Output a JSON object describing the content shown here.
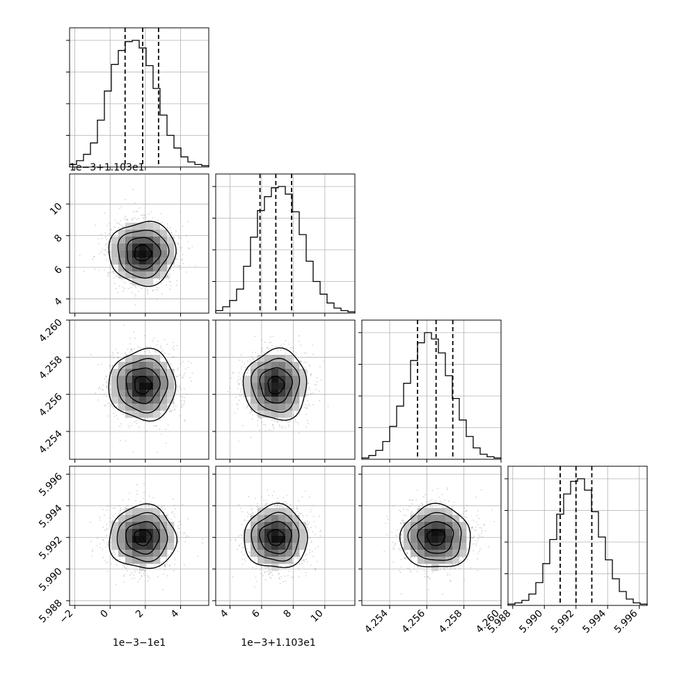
{
  "colors": {
    "frame": "#000000",
    "grid": "#b0b0b0",
    "scatter": "#808080",
    "quantile_line": "#000000"
  },
  "chart_data": {
    "type": "corner",
    "grid": true,
    "quantile_lines": "dashed",
    "parameters": [
      {
        "range": [
          -2.3,
          5.6
        ],
        "ticks": [
          -2,
          0,
          2,
          4
        ],
        "tick_labels": [
          "−2",
          "0",
          "2",
          "4"
        ],
        "offset_label": "1e−3−1e1",
        "quantiles": [
          0.85,
          1.85,
          2.75
        ],
        "hist": {
          "edges": [
            -2.3,
            -1.905,
            -1.51,
            -1.115,
            -0.72,
            -0.325,
            0.07,
            0.465,
            0.86,
            1.255,
            1.65,
            2.045,
            2.44,
            2.835,
            3.23,
            3.625,
            4.02,
            4.415,
            4.81,
            5.205,
            5.6
          ],
          "counts": [
            2,
            5,
            10,
            19,
            37,
            60,
            81,
            92,
            99,
            100,
            94,
            80,
            62,
            41,
            25,
            15,
            8,
            4,
            2,
            1
          ]
        }
      },
      {
        "range": [
          3.1,
          11.9
        ],
        "ticks": [
          4,
          6,
          8,
          10
        ],
        "tick_labels": [
          "4",
          "6",
          "8",
          "10"
        ],
        "offset_label": "1e−3+1.103e1",
        "quantiles": [
          5.9,
          6.9,
          7.9
        ],
        "hist": {
          "edges": [
            3.1,
            3.54,
            3.98,
            4.42,
            4.86,
            5.3,
            5.74,
            6.18,
            6.62,
            7.06,
            7.5,
            7.94,
            8.38,
            8.82,
            9.26,
            9.7,
            10.14,
            10.58,
            11.02,
            11.46,
            11.9
          ],
          "counts": [
            2,
            5,
            10,
            19,
            37,
            60,
            81,
            92,
            99,
            100,
            94,
            80,
            62,
            41,
            25,
            15,
            8,
            4,
            2,
            1
          ]
        }
      },
      {
        "range": [
          4.2525,
          4.26
        ],
        "ticks": [
          4.254,
          4.256,
          4.258,
          4.26
        ],
        "tick_labels": [
          "4.254",
          "4.256",
          "4.258",
          "4.260"
        ],
        "offset_label": "",
        "quantiles": [
          4.2555,
          4.2565,
          4.2574
        ],
        "hist": {
          "edges": [
            4.2525,
            4.252875,
            4.25325,
            4.253625,
            4.254,
            4.254375,
            4.25475,
            4.255125,
            4.2555,
            4.255875,
            4.25625,
            4.256625,
            4.257,
            4.257375,
            4.25775,
            4.258125,
            4.2585,
            4.258875,
            4.25925,
            4.259625,
            4.26
          ],
          "counts": [
            1,
            3,
            7,
            14,
            26,
            42,
            60,
            78,
            92,
            100,
            95,
            84,
            66,
            48,
            31,
            18,
            9,
            4,
            2,
            1
          ]
        }
      },
      {
        "range": [
          5.9877,
          5.9965
        ],
        "ticks": [
          5.988,
          5.99,
          5.992,
          5.994,
          5.996
        ],
        "tick_labels": [
          "5.988",
          "5.990",
          "5.992",
          "5.994",
          "5.996"
        ],
        "offset_label": "",
        "quantiles": [
          5.991,
          5.992,
          5.993
        ],
        "hist": {
          "edges": [
            5.9877,
            5.98814,
            5.98858,
            5.98902,
            5.98946,
            5.9899,
            5.99034,
            5.99078,
            5.99122,
            5.99166,
            5.9921,
            5.99254,
            5.99298,
            5.99342,
            5.99386,
            5.9943,
            5.99474,
            5.99518,
            5.99562,
            5.99606,
            5.9965
          ],
          "counts": [
            1,
            2,
            4,
            9,
            18,
            33,
            52,
            72,
            88,
            98,
            100,
            91,
            74,
            54,
            36,
            21,
            11,
            5,
            2,
            1
          ]
        }
      }
    ]
  }
}
